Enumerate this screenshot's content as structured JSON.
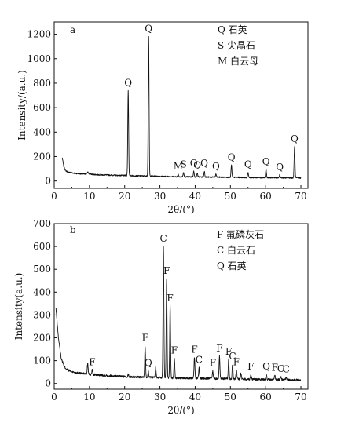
{
  "chart_data": [
    {
      "panel": "a",
      "type": "line",
      "xlabel": "2θ/(°)",
      "ylabel": "Intensity/(a.u.)",
      "xlim": [
        0,
        72
      ],
      "ylim": [
        -60,
        1300
      ],
      "x_ticks": [
        0,
        10,
        20,
        30,
        40,
        50,
        60,
        70
      ],
      "y_ticks": [
        0,
        200,
        400,
        600,
        800,
        1000,
        1200
      ],
      "legend": [
        {
          "symbol": "Q",
          "text": "石英"
        },
        {
          "symbol": "S",
          "text": "尖晶石"
        },
        {
          "symbol": "M",
          "text": "白云母"
        }
      ],
      "baseline": [
        [
          2.3,
          190
        ],
        [
          2.7,
          120
        ],
        [
          3.2,
          85
        ],
        [
          4,
          72
        ],
        [
          5,
          68
        ],
        [
          6,
          62
        ],
        [
          7,
          60
        ],
        [
          8,
          58
        ],
        [
          9,
          56
        ],
        [
          9.5,
          72
        ],
        [
          10,
          58
        ],
        [
          11,
          54
        ],
        [
          12,
          52
        ],
        [
          14,
          50
        ],
        [
          16,
          48
        ],
        [
          18,
          46
        ],
        [
          20,
          45
        ],
        [
          22,
          44
        ],
        [
          24,
          42
        ],
        [
          26,
          41
        ],
        [
          28,
          40
        ],
        [
          30,
          38
        ],
        [
          32,
          37
        ],
        [
          34,
          36
        ],
        [
          36,
          35
        ],
        [
          38,
          34
        ],
        [
          40,
          34
        ],
        [
          42,
          33
        ],
        [
          44,
          32
        ],
        [
          46,
          32
        ],
        [
          48,
          31
        ],
        [
          50,
          30
        ],
        [
          52,
          30
        ],
        [
          54,
          29
        ],
        [
          56,
          28
        ],
        [
          58,
          28
        ],
        [
          60,
          27
        ],
        [
          62,
          27
        ],
        [
          64,
          26
        ],
        [
          66,
          26
        ],
        [
          68,
          25
        ],
        [
          70,
          25
        ]
      ],
      "peaks": [
        {
          "x": 21.0,
          "y": 740,
          "label": "Q"
        },
        {
          "x": 26.8,
          "y": 1180,
          "label": "Q"
        },
        {
          "x": 35.2,
          "y": 55,
          "label": "M"
        },
        {
          "x": 36.7,
          "y": 70,
          "label": "S"
        },
        {
          "x": 39.6,
          "y": 80,
          "label": "Q"
        },
        {
          "x": 40.6,
          "y": 65,
          "label": "Q"
        },
        {
          "x": 42.6,
          "y": 80,
          "label": "Q"
        },
        {
          "x": 45.9,
          "y": 55,
          "label": "Q"
        },
        {
          "x": 50.3,
          "y": 130,
          "label": "Q"
        },
        {
          "x": 55.0,
          "y": 70,
          "label": "Q"
        },
        {
          "x": 60.1,
          "y": 95,
          "label": "Q"
        },
        {
          "x": 64.0,
          "y": 50,
          "label": "Q"
        },
        {
          "x": 68.2,
          "y": 280,
          "label": "Q"
        }
      ]
    },
    {
      "panel": "b",
      "type": "line",
      "xlabel": "2θ/(°)",
      "ylabel": "Intensity(a.u.)",
      "xlim": [
        0,
        72
      ],
      "ylim": [
        -25,
        700
      ],
      "x_ticks": [
        0,
        10,
        20,
        30,
        40,
        50,
        60,
        70
      ],
      "y_ticks": [
        0,
        100,
        200,
        300,
        400,
        500,
        600,
        700
      ],
      "legend": [
        {
          "symbol": "F",
          "text": "氟磷灰石"
        },
        {
          "symbol": "C",
          "text": "白云石"
        },
        {
          "symbol": "Q",
          "text": "石英"
        }
      ],
      "baseline": [
        [
          0.5,
          330
        ],
        [
          1.2,
          200
        ],
        [
          2,
          110
        ],
        [
          3,
          70
        ],
        [
          4,
          58
        ],
        [
          5,
          52
        ],
        [
          6,
          48
        ],
        [
          8,
          44
        ],
        [
          10,
          40
        ],
        [
          12,
          38
        ],
        [
          14,
          36
        ],
        [
          16,
          34
        ],
        [
          18,
          32
        ],
        [
          20,
          30
        ],
        [
          22,
          29
        ],
        [
          24,
          28
        ],
        [
          26,
          27
        ],
        [
          28,
          27
        ],
        [
          30,
          26
        ],
        [
          32,
          25
        ],
        [
          34,
          24
        ],
        [
          36,
          24
        ],
        [
          38,
          23
        ],
        [
          40,
          23
        ],
        [
          42,
          22
        ],
        [
          44,
          22
        ],
        [
          46,
          21
        ],
        [
          48,
          21
        ],
        [
          50,
          20
        ],
        [
          52,
          20
        ],
        [
          54,
          19
        ],
        [
          56,
          19
        ],
        [
          58,
          18
        ],
        [
          60,
          18
        ],
        [
          62,
          17
        ],
        [
          64,
          17
        ],
        [
          66,
          16
        ],
        [
          68,
          16
        ],
        [
          70,
          15
        ]
      ],
      "peaks": [
        {
          "x": 9.5,
          "y": 90,
          "label": ""
        },
        {
          "x": 10.8,
          "y": 60,
          "label": "F"
        },
        {
          "x": 21.0,
          "y": 40,
          "label": ""
        },
        {
          "x": 25.8,
          "y": 165,
          "label": "F"
        },
        {
          "x": 26.7,
          "y": 55,
          "label": "Q"
        },
        {
          "x": 28.8,
          "y": 70,
          "label": ""
        },
        {
          "x": 31.0,
          "y": 600,
          "label": "C"
        },
        {
          "x": 31.9,
          "y": 460,
          "label": "F"
        },
        {
          "x": 32.9,
          "y": 340,
          "label": "F"
        },
        {
          "x": 34.1,
          "y": 110,
          "label": "F"
        },
        {
          "x": 39.8,
          "y": 115,
          "label": "F"
        },
        {
          "x": 41.1,
          "y": 70,
          "label": "C"
        },
        {
          "x": 45.0,
          "y": 55,
          "label": "F"
        },
        {
          "x": 46.9,
          "y": 120,
          "label": "F"
        },
        {
          "x": 49.5,
          "y": 105,
          "label": "F"
        },
        {
          "x": 50.6,
          "y": 85,
          "label": "C"
        },
        {
          "x": 51.7,
          "y": 60,
          "label": "F"
        },
        {
          "x": 53.0,
          "y": 45,
          "label": ""
        },
        {
          "x": 55.8,
          "y": 40,
          "label": "F"
        },
        {
          "x": 60.2,
          "y": 40,
          "label": "Q"
        },
        {
          "x": 62.6,
          "y": 35,
          "label": "F"
        },
        {
          "x": 64.3,
          "y": 30,
          "label": "C"
        },
        {
          "x": 65.8,
          "y": 28,
          "label": "C"
        }
      ]
    }
  ]
}
